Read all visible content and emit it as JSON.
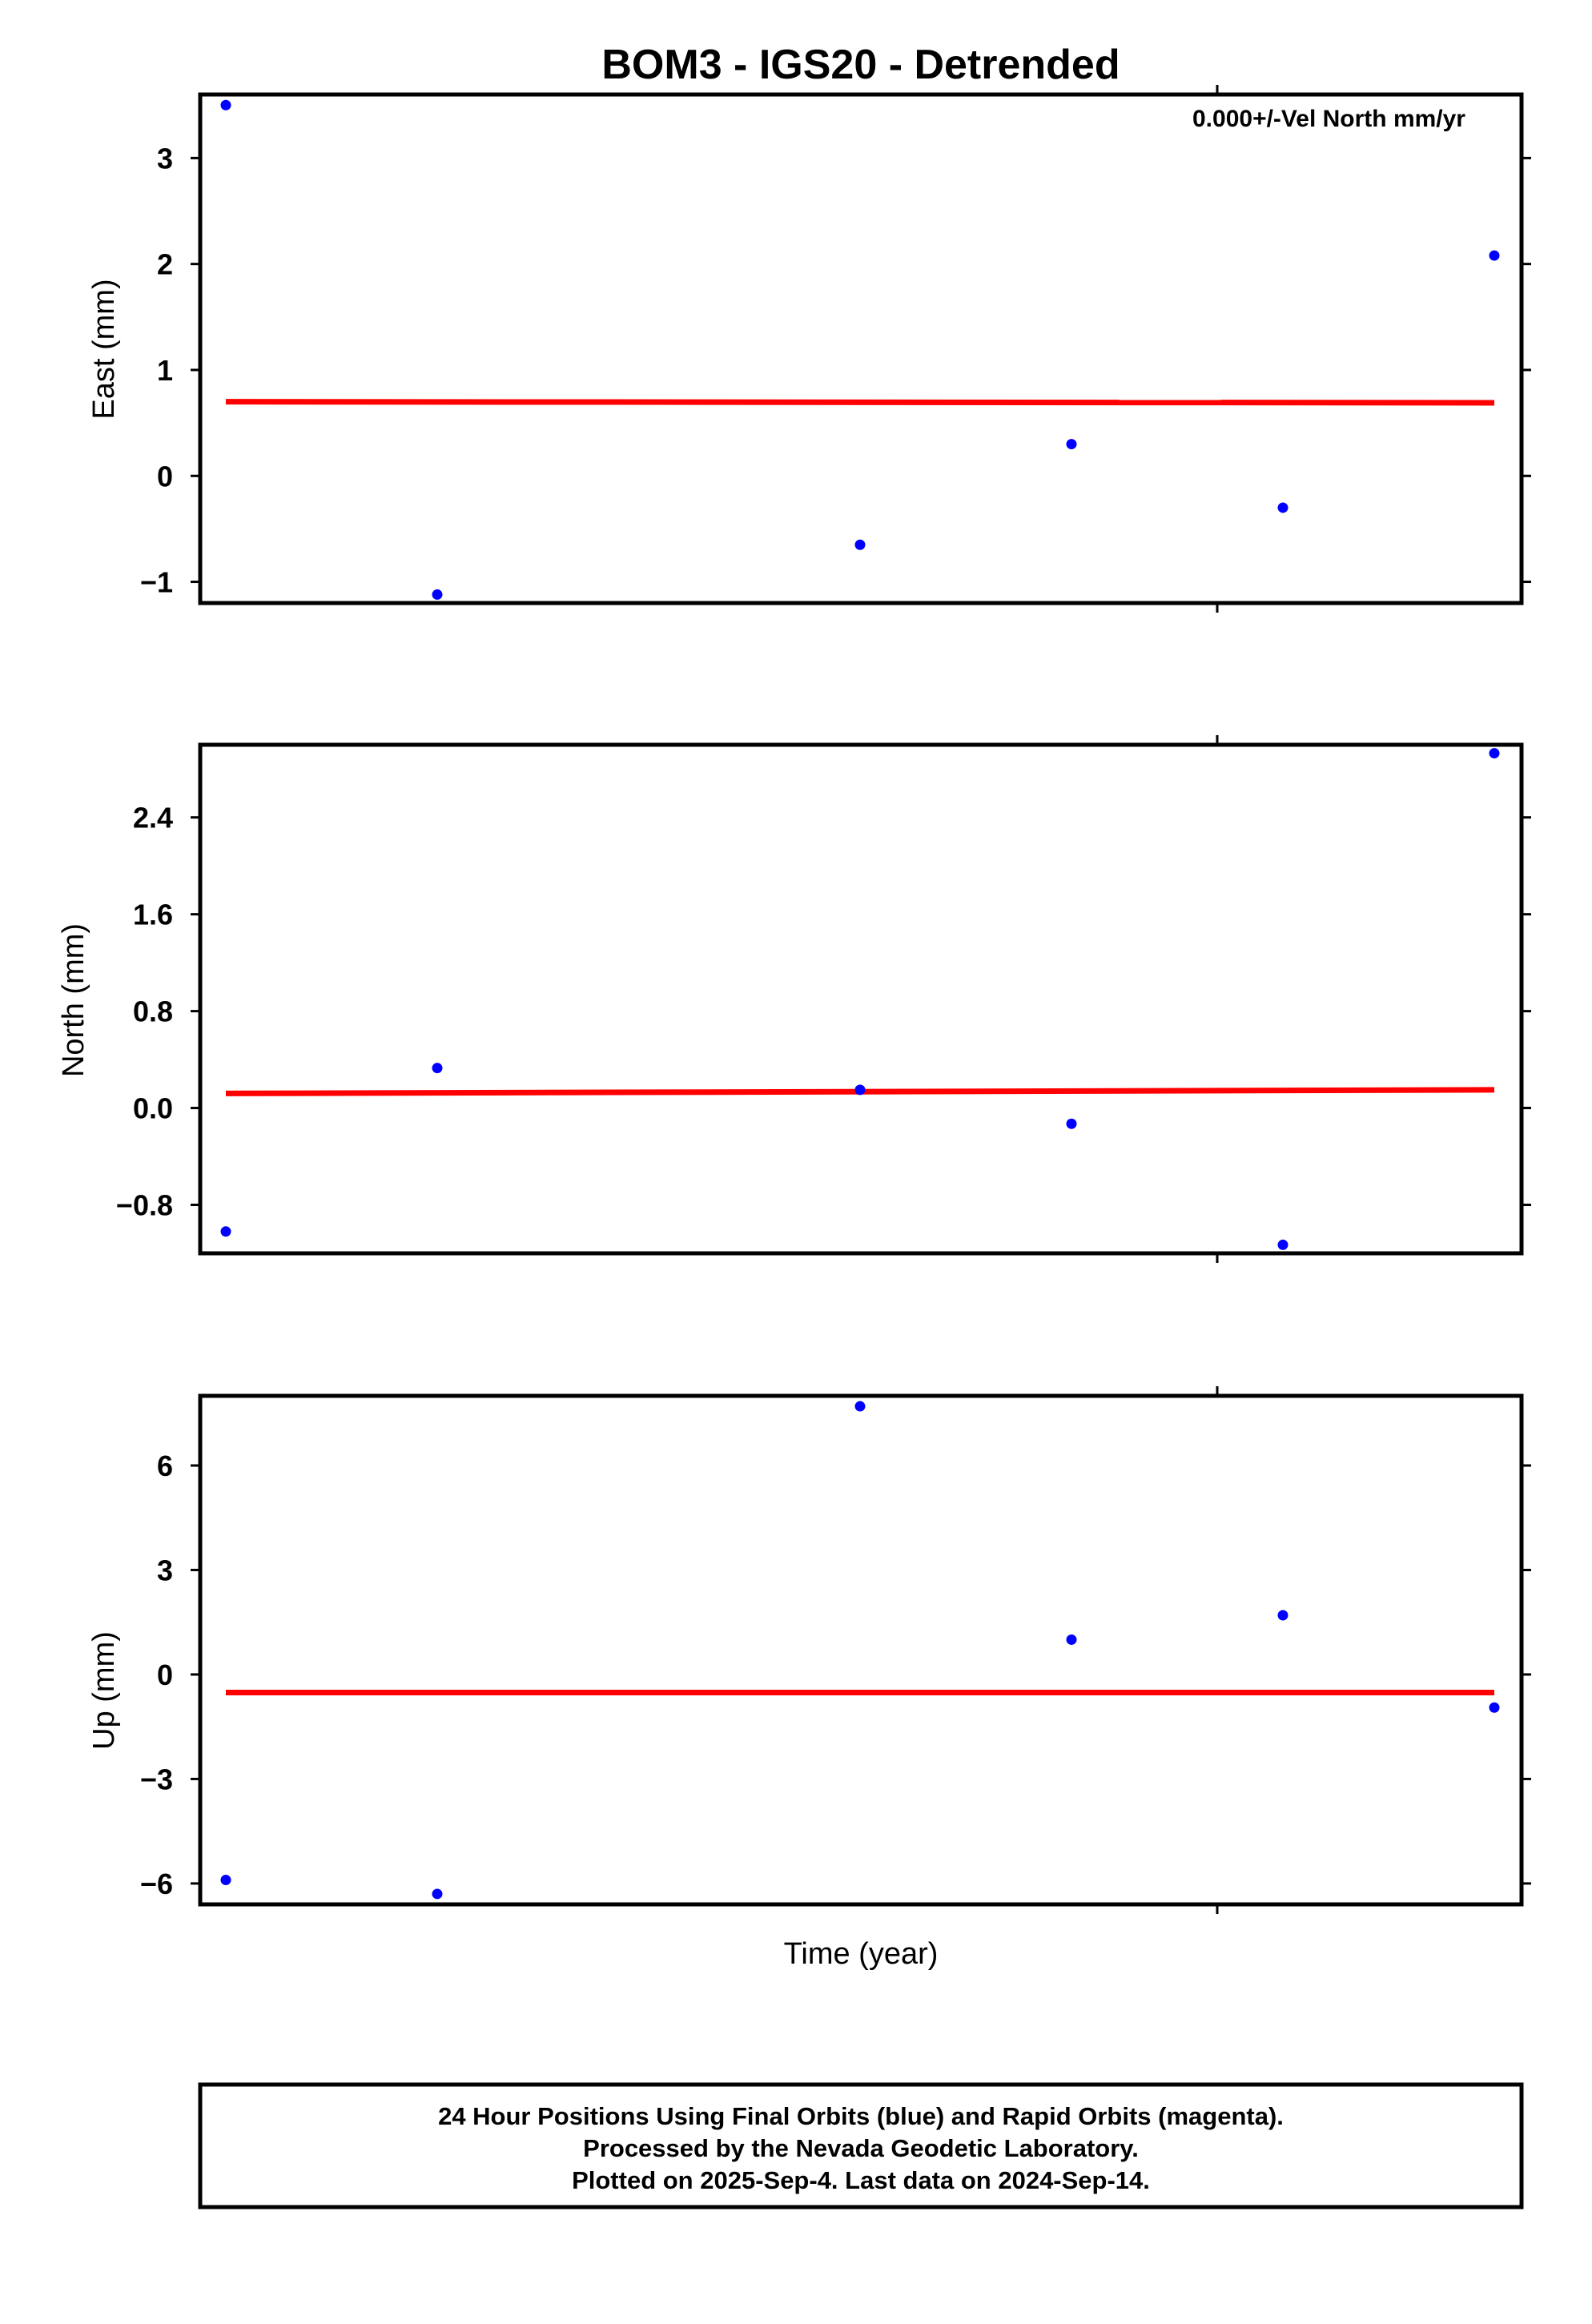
{
  "chart_data": {
    "type": "scatter",
    "title": "BOM3 - IGS20 - Detrended",
    "xlabel": "Time (year)",
    "annotation": "0.000+/-Vel North mm/yr",
    "footer": [
      "24 Hour Positions Using Final Orbits (blue) and Rapid Orbits (magenta).",
      "Processed by the Nevada Geodetic Laboratory.",
      "Plotted on 2025-Sep-4. Last data on 2024-Sep-14."
    ],
    "colors": {
      "points": "#0000ff",
      "trend": "#ff0000",
      "frame": "#000000"
    },
    "panels": [
      {
        "ylabel": "East (mm)",
        "ylim": [
          -1.2,
          3.6
        ],
        "yticks": [
          -1,
          0,
          1,
          2,
          3
        ],
        "yticklabels": [
          "−1",
          "0",
          "1",
          "2",
          "3"
        ],
        "x": [
          0,
          1,
          3,
          4,
          5,
          6
        ],
        "values": [
          3.5,
          -1.12,
          -0.65,
          0.3,
          -0.3,
          2.08
        ],
        "trend": [
          0.7,
          0.69
        ]
      },
      {
        "ylabel": "North (mm)",
        "ylim": [
          -1.2,
          3.0
        ],
        "yticks": [
          -0.8,
          0.0,
          0.8,
          1.6,
          2.4
        ],
        "yticklabels": [
          "−0.8",
          "0.0",
          "0.8",
          "1.6",
          "2.4"
        ],
        "x": [
          0,
          1,
          3,
          4,
          5,
          6
        ],
        "values": [
          -1.02,
          0.33,
          0.15,
          -0.13,
          -1.13,
          2.93
        ],
        "trend": [
          0.12,
          0.15
        ]
      },
      {
        "ylabel": "Up (mm)",
        "ylim": [
          -6.6,
          8.0
        ],
        "yticks": [
          -6,
          -3,
          0,
          3,
          6
        ],
        "yticklabels": [
          "−6",
          "−3",
          "0",
          "3",
          "6"
        ],
        "x": [
          0,
          1,
          3,
          4,
          5,
          6
        ],
        "values": [
          -5.9,
          -6.3,
          7.7,
          1.0,
          1.7,
          -0.95
        ],
        "trend": [
          -0.52,
          -0.52
        ]
      }
    ]
  }
}
